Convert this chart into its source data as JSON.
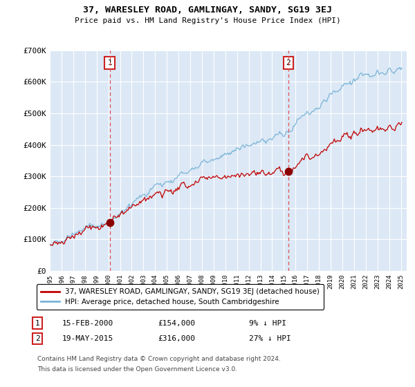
{
  "title": "37, WARESLEY ROAD, GAMLINGAY, SANDY, SG19 3EJ",
  "subtitle": "Price paid vs. HM Land Registry's House Price Index (HPI)",
  "red_label": "37, WARESLEY ROAD, GAMLINGAY, SANDY, SG19 3EJ (detached house)",
  "blue_label": "HPI: Average price, detached house, South Cambridgeshire",
  "annotation1_date": "15-FEB-2000",
  "annotation1_price": "£154,000",
  "annotation1_note": "9% ↓ HPI",
  "annotation1_year": 2000.12,
  "annotation1_value": 154000,
  "annotation2_date": "19-MAY-2015",
  "annotation2_price": "£316,000",
  "annotation2_note": "27% ↓ HPI",
  "annotation2_year": 2015.38,
  "annotation2_value": 316000,
  "footer1": "Contains HM Land Registry data © Crown copyright and database right 2024.",
  "footer2": "This data is licensed under the Open Government Licence v3.0.",
  "ylim": [
    0,
    700000
  ],
  "yticks": [
    0,
    100000,
    200000,
    300000,
    400000,
    500000,
    600000,
    700000
  ],
  "ytick_labels": [
    "£0",
    "£100K",
    "£200K",
    "£300K",
    "£400K",
    "£500K",
    "£600K",
    "£700K"
  ],
  "background_color": "#dce8f5",
  "shaded_color": "#dce8f5",
  "grid_color": "#c0cfe0",
  "line_color_red": "#c00000",
  "line_color_blue": "#7ab4d8"
}
